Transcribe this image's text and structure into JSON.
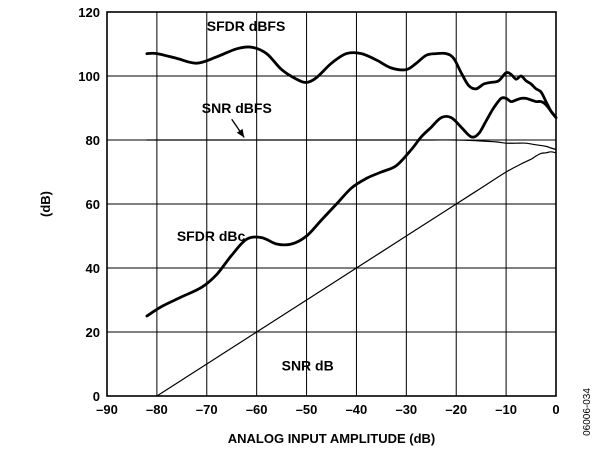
{
  "chart_data": {
    "type": "line",
    "xlabel": "ANALOG INPUT AMPLITUDE (dB)",
    "ylabel": "(dB)",
    "xlim": [
      -90,
      0
    ],
    "ylim": [
      0,
      120
    ],
    "x_ticks": [
      -90,
      -80,
      -70,
      -60,
      -50,
      -40,
      -30,
      -20,
      -10,
      0
    ],
    "x_tick_labels": [
      "–90",
      "–80",
      "–70",
      "–60",
      "–50",
      "–40",
      "–30",
      "–20",
      "–10",
      "0"
    ],
    "y_ticks": [
      0,
      20,
      40,
      60,
      80,
      100,
      120
    ],
    "y_tick_labels": [
      "0",
      "20",
      "40",
      "60",
      "80",
      "100",
      "120"
    ],
    "grid": true,
    "figure_id": "06006-034",
    "series": [
      {
        "name": "SFDR dBFS",
        "x": [
          -82,
          -80,
          -76,
          -72,
          -68,
          -64,
          -61,
          -58,
          -55,
          -52,
          -50,
          -48,
          -45,
          -42,
          -39,
          -36,
          -33,
          -30,
          -28,
          -26,
          -24,
          -22,
          -20.5,
          -19,
          -17.5,
          -16,
          -14.5,
          -13,
          -11.5,
          -10,
          -9,
          -8,
          -7,
          -6,
          -5,
          -4,
          -3,
          -2,
          -1,
          0
        ],
        "y": [
          107,
          107,
          105.5,
          104,
          106,
          108.5,
          109,
          107,
          102,
          99,
          98,
          99.5,
          104,
          107,
          107,
          105,
          102.5,
          102,
          104,
          106.5,
          107,
          107,
          105.5,
          101,
          97,
          96,
          97.5,
          98,
          98.5,
          101,
          100.5,
          99,
          100,
          98.5,
          97.5,
          96,
          95,
          92,
          89,
          87
        ]
      },
      {
        "name": "SNR dBFS",
        "x": [
          -82,
          -70,
          -60,
          -50,
          -40,
          -30,
          -25,
          -20,
          -15,
          -12,
          -10,
          -8,
          -6,
          -4,
          -2,
          -1,
          0
        ],
        "y": [
          80,
          80,
          80,
          80,
          80,
          80,
          80,
          80,
          79.7,
          79.4,
          79,
          79,
          79,
          78.5,
          78,
          77.5,
          77
        ]
      },
      {
        "name": "SFDR dBc",
        "x": [
          -82,
          -79,
          -75,
          -71,
          -68,
          -65,
          -62,
          -59,
          -56,
          -53,
          -50,
          -47,
          -44,
          -41,
          -38,
          -35,
          -32,
          -29,
          -27,
          -25,
          -23,
          -21,
          -19,
          -17,
          -15.5,
          -14,
          -12.5,
          -11,
          -10,
          -9,
          -8,
          -7,
          -6,
          -5,
          -4,
          -3,
          -2,
          -1,
          0
        ],
        "y": [
          25,
          28,
          31,
          34,
          38,
          44,
          49,
          49.5,
          47.5,
          47.5,
          50,
          55,
          60,
          65,
          68,
          70,
          72,
          77,
          81,
          84,
          87,
          87,
          84,
          81,
          82,
          86,
          90,
          93,
          93,
          92,
          92.5,
          93,
          93,
          92.5,
          92,
          92,
          91,
          89,
          87
        ]
      },
      {
        "name": "SNR dB",
        "x": [
          -80,
          -70,
          -60,
          -50,
          -40,
          -30,
          -20,
          -15,
          -10,
          -7,
          -5,
          -4,
          -3,
          -2,
          -1,
          0
        ],
        "y": [
          0,
          10,
          20,
          30,
          40,
          50,
          60,
          65,
          70,
          72.5,
          74,
          75,
          75.8,
          76,
          76.3,
          76
        ]
      }
    ],
    "annotations": [
      {
        "text": "SFDR dBFS",
        "series": "SFDR dBFS"
      },
      {
        "text": "SNR dBFS",
        "series": "SNR dBFS"
      },
      {
        "text": "SFDR dBc",
        "series": "SFDR dBc"
      },
      {
        "text": "SNR dB",
        "series": "SNR dB"
      }
    ]
  }
}
